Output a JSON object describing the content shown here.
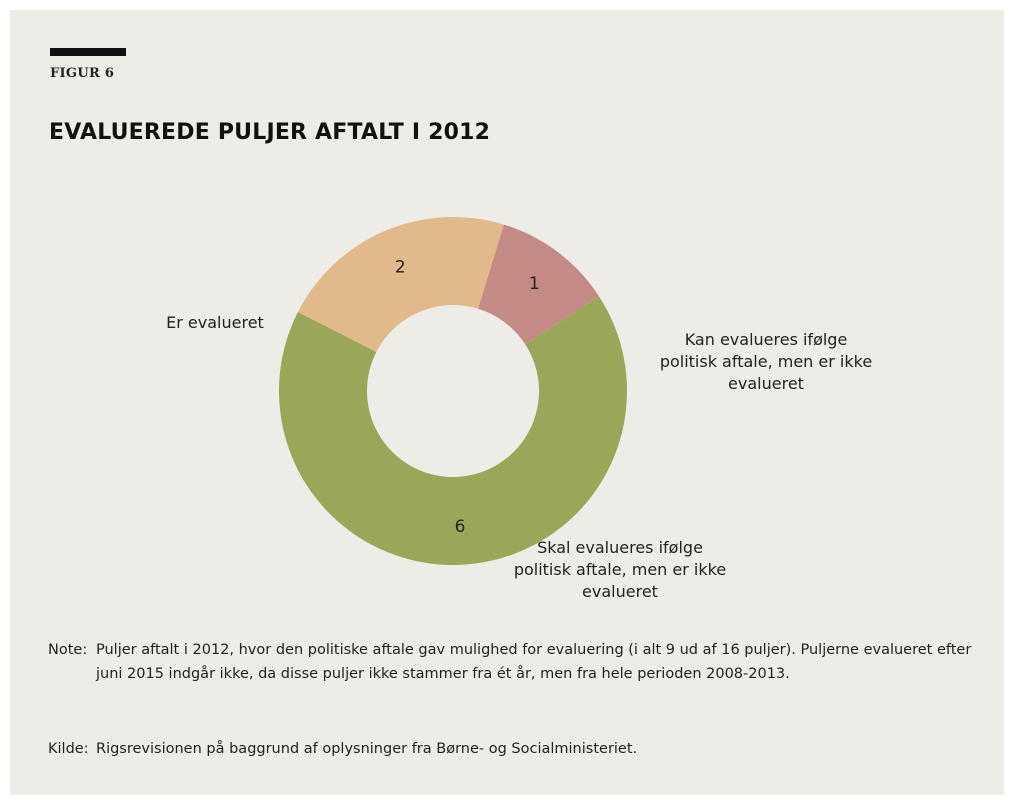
{
  "figure_label": "FIGUR 6",
  "title": "EVALUEREDE PULJER AFTALT I 2012",
  "chart_data": {
    "type": "donut",
    "title": "EVALUEREDE PULJER AFTALT I 2012",
    "categories": [
      "Er evalueret",
      "Kan evalueres ifølge politisk aftale, men er ikke evalueret",
      "Skal evalueres ifølge politisk aftale, men er ikke evalueret"
    ],
    "values": [
      6,
      2,
      1
    ],
    "colors": [
      "#9aa658",
      "#e2b98b",
      "#c48a86"
    ],
    "labels": [
      {
        "lines": [
          "Er evalueret"
        ]
      },
      {
        "lines": [
          "Kan evalueres ifølge",
          "politisk aftale, men er ikke",
          "evalueret"
        ]
      },
      {
        "lines": [
          "Skal evalueres ifølge",
          "politisk aftale, men er ikke",
          "evalueret"
        ]
      }
    ],
    "legend": "none",
    "grid": false
  },
  "note": {
    "key": "Note:",
    "text": "Puljer aftalt i 2012, hvor den politiske aftale gav mulighed for evaluering (i alt 9 ud af 16 puljer). Puljerne evalueret efter juni 2015 indgår ikke, da disse puljer ikke stammer fra ét år, men fra hele perioden 2008-2013."
  },
  "source": {
    "key": "Kilde:",
    "text": "Rigsrevisionen på baggrund af oplysninger fra Børne- og Socialministeriet."
  }
}
